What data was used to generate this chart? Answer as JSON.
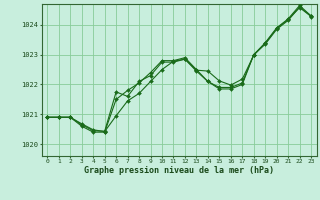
{
  "title": "Graphe pression niveau de la mer (hPa)",
  "bg_color": "#c8eedd",
  "plot_bg_color": "#c8eedd",
  "line_color": "#1a6b1a",
  "grid_color": "#88cc99",
  "xlim": [
    -0.5,
    23.5
  ],
  "ylim": [
    1019.6,
    1024.7
  ],
  "yticks": [
    1020,
    1021,
    1022,
    1023,
    1024
  ],
  "xticks": [
    0,
    1,
    2,
    3,
    4,
    5,
    6,
    7,
    8,
    9,
    10,
    11,
    12,
    13,
    14,
    15,
    16,
    17,
    18,
    19,
    20,
    21,
    22,
    23
  ],
  "series": [
    {
      "x": [
        0,
        1,
        2,
        3,
        4,
        5,
        6,
        7,
        8,
        9,
        10,
        11,
        12,
        13,
        14,
        15,
        16,
        17,
        18,
        19,
        20,
        21,
        22,
        23
      ],
      "y": [
        1020.9,
        1020.9,
        1020.9,
        1020.6,
        1020.4,
        1020.4,
        1021.5,
        1021.8,
        1022.05,
        1022.4,
        1022.8,
        1022.8,
        1022.9,
        1022.5,
        1022.1,
        1021.9,
        1021.9,
        1022.05,
        1023.0,
        1023.4,
        1023.9,
        1024.2,
        1024.65,
        1024.3
      ]
    },
    {
      "x": [
        0,
        1,
        2,
        3,
        4,
        5,
        6,
        7,
        8,
        9,
        10,
        11,
        12,
        13,
        14,
        15,
        16,
        17,
        18,
        19,
        20,
        21,
        22,
        23
      ],
      "y": [
        1020.9,
        1020.9,
        1020.9,
        1020.65,
        1020.45,
        1020.43,
        1021.75,
        1021.6,
        1022.1,
        1022.3,
        1022.75,
        1022.75,
        1022.85,
        1022.45,
        1022.1,
        1021.85,
        1021.85,
        1022.0,
        1023.0,
        1023.35,
        1023.85,
        1024.15,
        1024.6,
        1024.3
      ]
    },
    {
      "x": [
        0,
        1,
        2,
        3,
        4,
        5,
        6,
        7,
        8,
        9,
        10,
        11,
        12,
        13,
        14,
        15,
        16,
        17,
        18,
        19,
        20,
        21,
        22,
        23
      ],
      "y": [
        1020.9,
        1020.9,
        1020.9,
        1020.68,
        1020.48,
        1020.42,
        1020.95,
        1021.45,
        1021.7,
        1022.1,
        1022.5,
        1022.78,
        1022.85,
        1022.48,
        1022.45,
        1022.12,
        1021.98,
        1022.18,
        1022.98,
        1023.38,
        1023.88,
        1024.18,
        1024.58,
        1024.28
      ]
    }
  ]
}
